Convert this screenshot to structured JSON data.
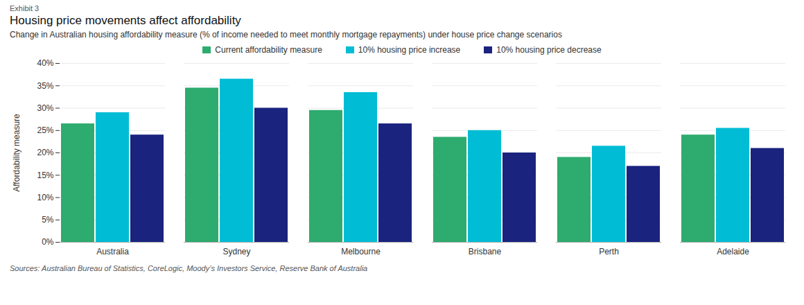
{
  "chart_data": {
    "type": "bar",
    "exhibit_label": "Exhibit 3",
    "title": "Housing price movements affect affordability",
    "subtitle": "Change in Australian housing affordability measure (% of income needed to meet monthly mortgage repayments) under house price change scenarios",
    "source": "Sources: Australian Bureau of Statistics, CoreLogic, Moody’s Investors Service, Reserve Bank of Australia",
    "ylabel": "Affordability measure",
    "categories": [
      "Australia",
      "Sydney",
      "Melbourne",
      "Brisbane",
      "Perth",
      "Adelaide"
    ],
    "series": [
      {
        "name": "Current affordability measure",
        "color": "#2eab6e",
        "values": [
          26.5,
          34.5,
          29.5,
          23.5,
          19.0,
          24.0
        ]
      },
      {
        "name": "10% housing price increase",
        "color": "#00bcd4",
        "values": [
          29.0,
          36.5,
          33.5,
          25.0,
          21.5,
          25.5
        ]
      },
      {
        "name": "10% housing price decrease",
        "color": "#1a237e",
        "values": [
          24.0,
          30.0,
          26.5,
          20.0,
          17.0,
          21.0
        ]
      }
    ],
    "ylim": [
      0,
      40
    ],
    "yticks": [
      {
        "value": 0,
        "label": "0%"
      },
      {
        "value": 5,
        "label": "5%"
      },
      {
        "value": 10,
        "label": "10%"
      },
      {
        "value": 15,
        "label": "15%"
      },
      {
        "value": 20,
        "label": "20%"
      },
      {
        "value": 25,
        "label": "25%"
      },
      {
        "value": 30,
        "label": "30%"
      },
      {
        "value": 35,
        "label": "35%"
      },
      {
        "value": 40,
        "label": "40%"
      }
    ],
    "grid": true,
    "legend": "top"
  }
}
